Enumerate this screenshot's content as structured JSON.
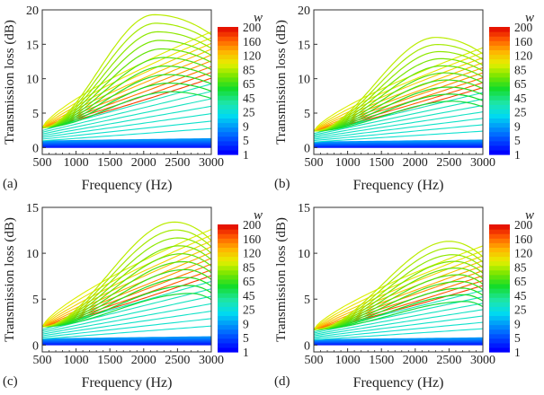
{
  "figure": {
    "colorbar": {
      "title": "w",
      "tick_labels": [
        "200",
        "160",
        "120",
        "85",
        "65",
        "45",
        "25",
        "9",
        "5",
        "1"
      ],
      "colors": [
        "#0000ff",
        "#0060ff",
        "#00b0ff",
        "#00f0e0",
        "#20e8a0",
        "#00e000",
        "#40e000",
        "#90f000",
        "#e0f000",
        "#ffe000",
        "#ffb000",
        "#ff7000",
        "#ff3000",
        "#ff0000"
      ]
    }
  },
  "chart_data": [
    {
      "type": "line",
      "panel_label": "(a)",
      "xlabel": "Frequency (Hz)",
      "ylabel": "Transmission loss (dB)",
      "xlim": [
        500,
        3000
      ],
      "ylim": [
        -1,
        20
      ],
      "xticks": [
        "500",
        "1000",
        "1500",
        "2000",
        "2500",
        "3000"
      ],
      "yticks": [
        "0",
        "5",
        "10",
        "15",
        "20"
      ],
      "grid": false,
      "legend": "colorbar right, w = 1 to 200",
      "start_value": 2.9,
      "peak_value": 19.3,
      "peak_frequency": 2150,
      "end_value_top": 16.8
    },
    {
      "type": "line",
      "panel_label": "(b)",
      "xlabel": "Frequency (Hz)",
      "ylabel": "Transmission loss (dB)",
      "xlim": [
        500,
        3000
      ],
      "ylim": [
        -1,
        20
      ],
      "xticks": [
        "500",
        "1000",
        "1500",
        "2000",
        "2500",
        "3000"
      ],
      "yticks": [
        "0",
        "5",
        "10",
        "15",
        "20"
      ],
      "grid": false,
      "legend": "colorbar right, w = 1 to 200",
      "start_value": 2.4,
      "peak_value": 16.0,
      "peak_frequency": 2300,
      "end_value_top": 14.5
    },
    {
      "type": "line",
      "panel_label": "(c)",
      "xlabel": "Frequency (Hz)",
      "ylabel": "Transmission loss (dB)",
      "xlim": [
        500,
        3000
      ],
      "ylim": [
        -0.75,
        15
      ],
      "xticks": [
        "500",
        "1000",
        "1500",
        "2000",
        "2500",
        "3000"
      ],
      "yticks": [
        "0",
        "5",
        "10",
        "15"
      ],
      "grid": false,
      "legend": "colorbar right, w = 1 to 200",
      "start_value": 2.0,
      "peak_value": 13.4,
      "peak_frequency": 2450,
      "end_value_top": 12.6
    },
    {
      "type": "line",
      "panel_label": "(d)",
      "xlabel": "Frequency (Hz)",
      "ylabel": "Transmission loss (dB)",
      "xlim": [
        500,
        3000
      ],
      "ylim": [
        -0.75,
        15
      ],
      "xticks": [
        "500",
        "1000",
        "1500",
        "2000",
        "2500",
        "3000"
      ],
      "yticks": [
        "0",
        "5",
        "10",
        "15"
      ],
      "grid": false,
      "legend": "colorbar right, w = 1 to 200",
      "start_value": 1.7,
      "peak_value": 11.3,
      "peak_frequency": 2500,
      "end_value_top": 10.8
    }
  ]
}
